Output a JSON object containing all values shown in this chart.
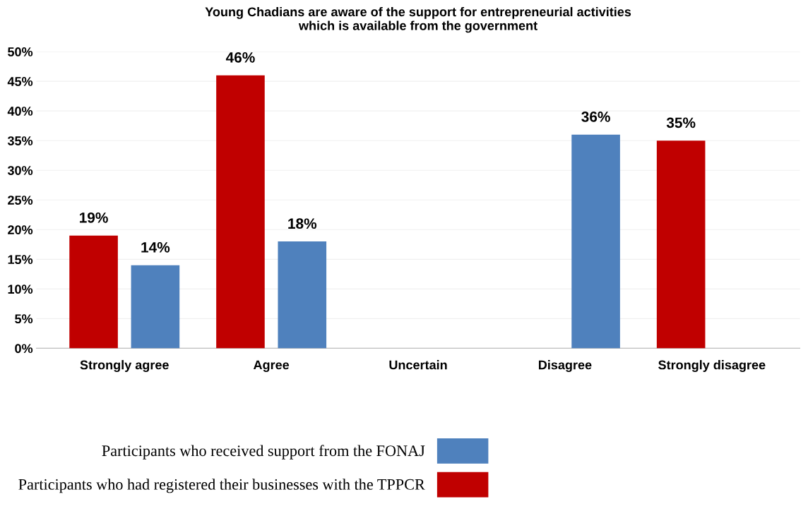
{
  "chart_data": {
    "type": "bar",
    "title": "Young Chadians are aware of the support for entrepreneurial activities\nwhich is available from the government",
    "categories": [
      "Strongly agree",
      "Agree",
      "Uncertain",
      "Disagree",
      "Strongly disagree"
    ],
    "series": [
      {
        "name": "Participants who had registered their businesses with the TPPCR",
        "color": "#c00000",
        "values": [
          19,
          46,
          null,
          null,
          35
        ],
        "value_labels": [
          "19%",
          "46%",
          null,
          null,
          "35%"
        ]
      },
      {
        "name": "Participants who received support from the FONAJ",
        "color": "#4f81bd",
        "values": [
          14,
          18,
          null,
          36,
          null
        ],
        "value_labels": [
          "14%",
          "18%",
          null,
          "36%",
          null
        ]
      }
    ],
    "ylim": [
      0,
      50
    ],
    "yticks": [
      {
        "value": 0,
        "label": "0%"
      },
      {
        "value": 5,
        "label": "5%"
      },
      {
        "value": 10,
        "label": "10%"
      },
      {
        "value": 15,
        "label": "15%"
      },
      {
        "value": 20,
        "label": "20%"
      },
      {
        "value": 25,
        "label": "25%"
      },
      {
        "value": 30,
        "label": "30%"
      },
      {
        "value": 35,
        "label": "35%"
      },
      {
        "value": 40,
        "label": "40%"
      },
      {
        "value": 45,
        "label": "45%"
      },
      {
        "value": 50,
        "label": "50%"
      }
    ],
    "grid": "y",
    "legend": "bottom"
  }
}
